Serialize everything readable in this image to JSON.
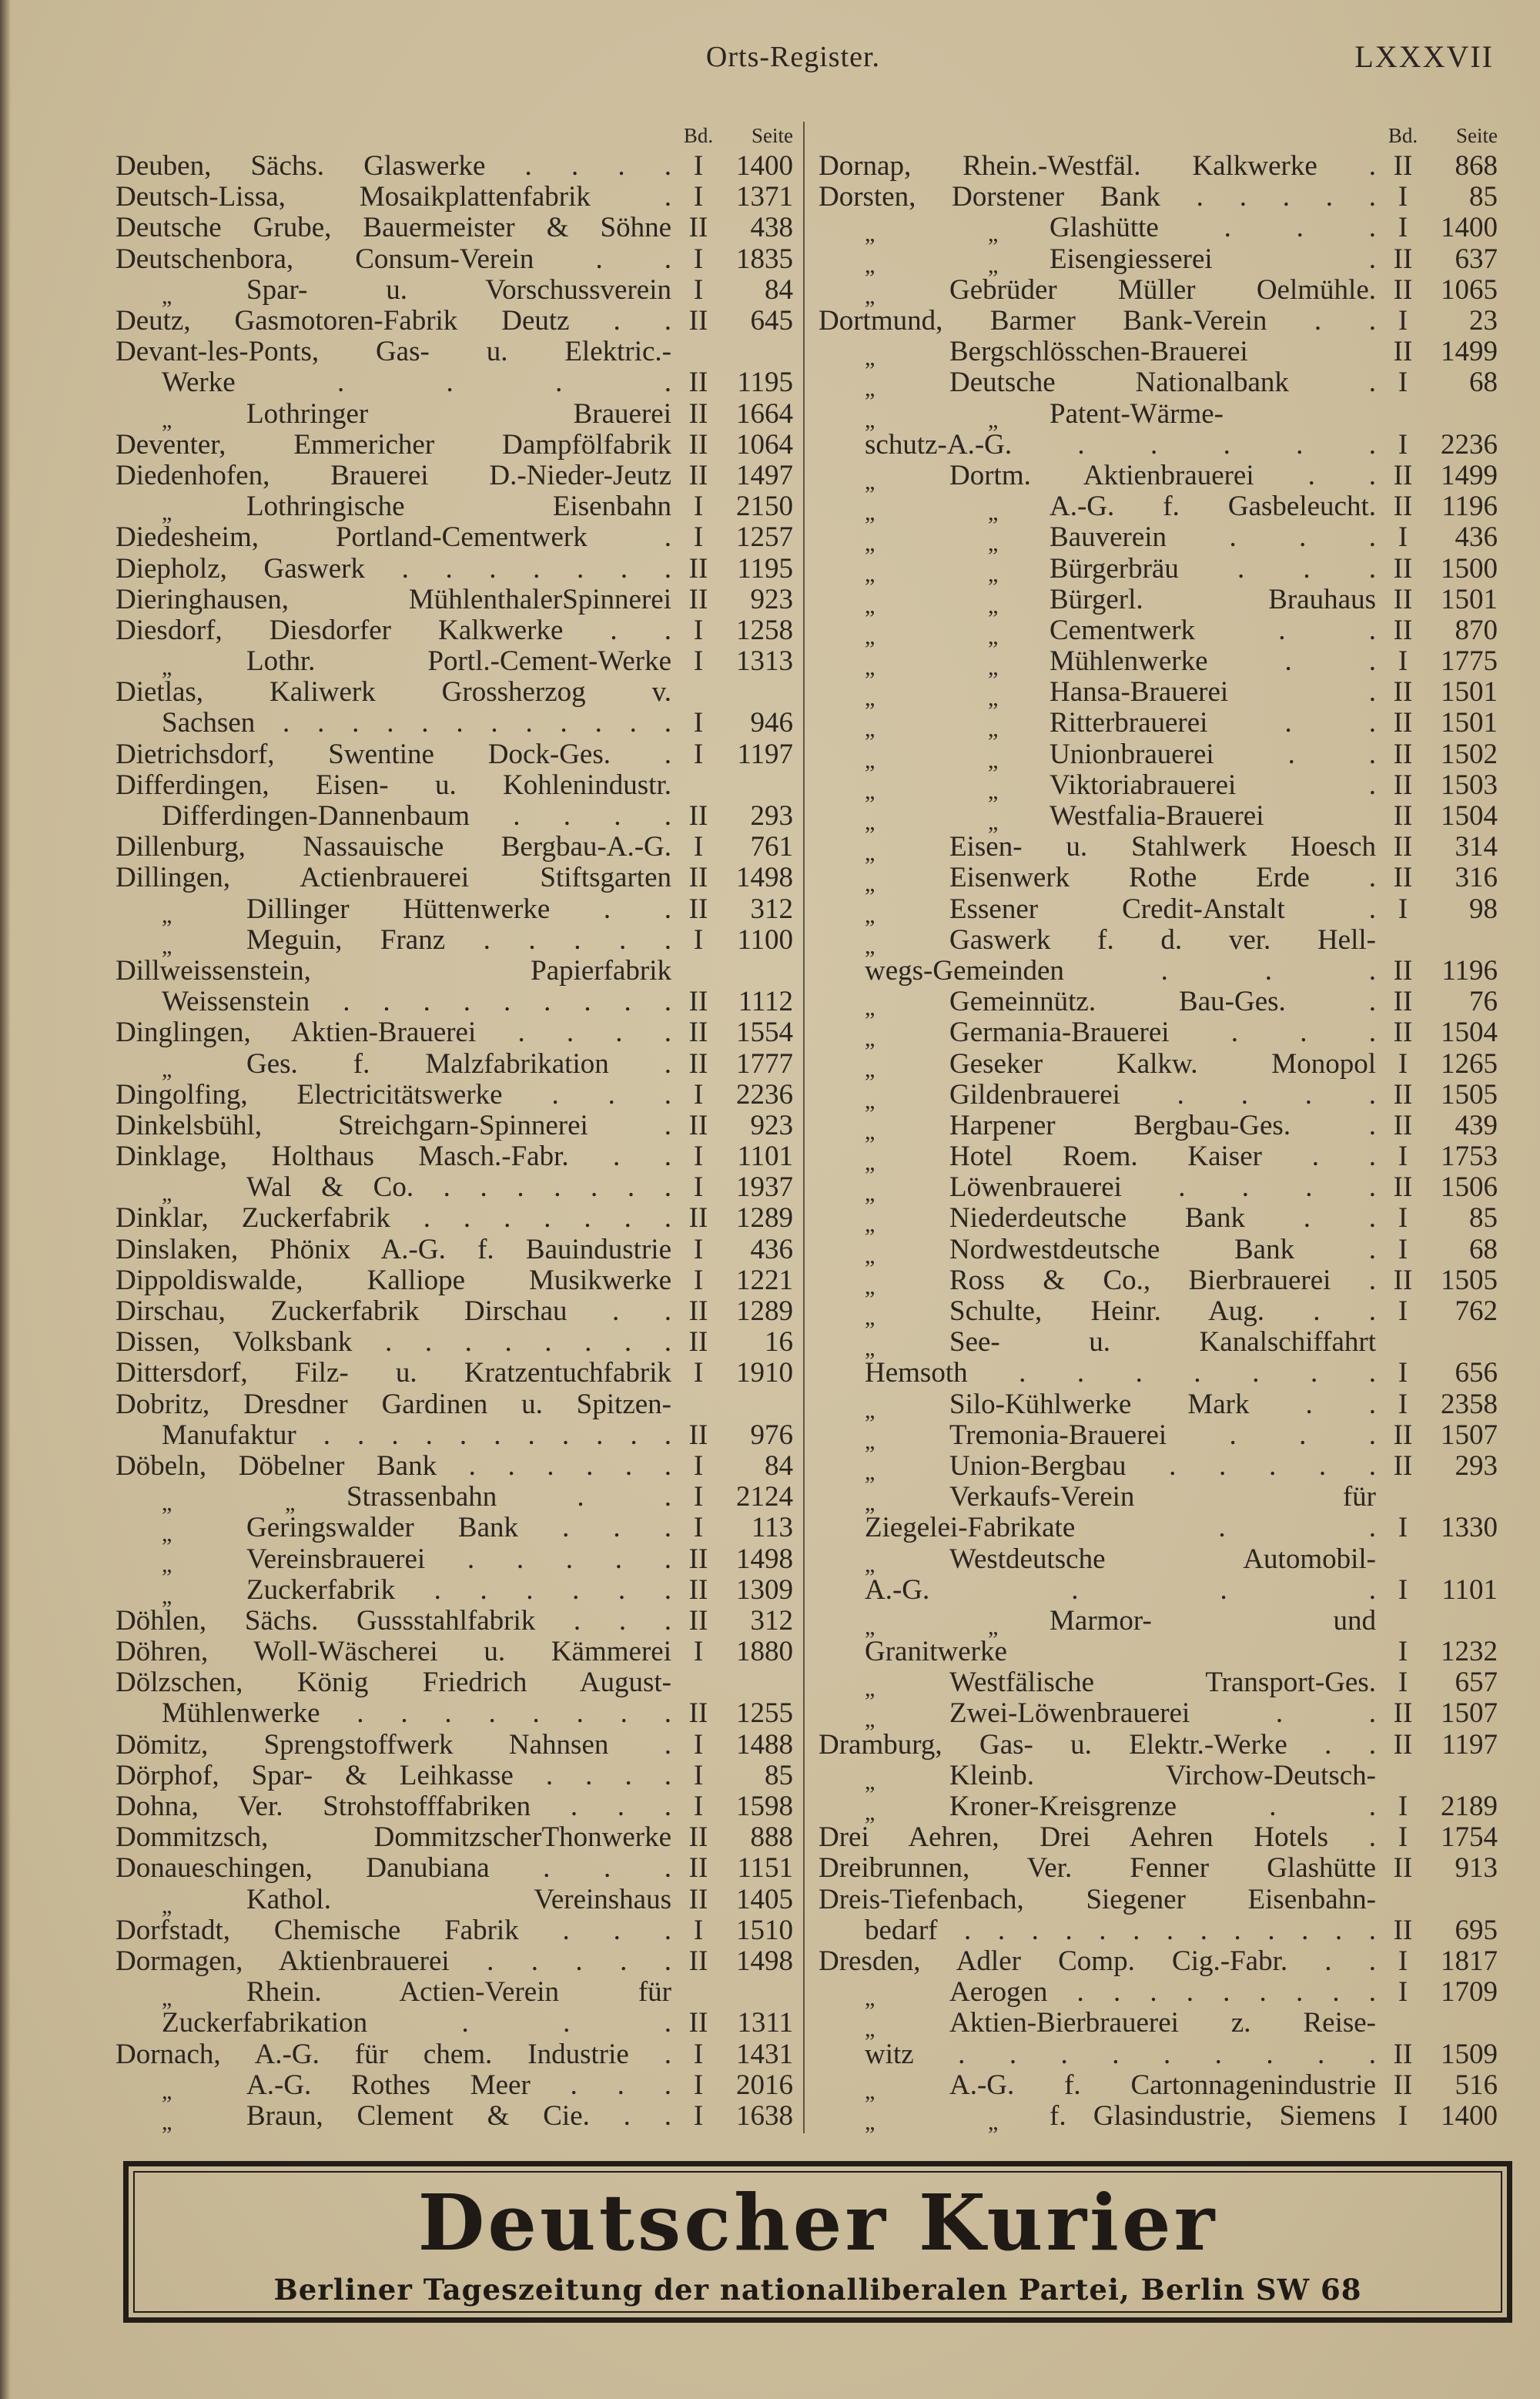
{
  "header": {
    "title": "Orts-Register.",
    "page_number": "LXXXVII"
  },
  "column_headers": {
    "bd": "Bd.",
    "seite": "Seite"
  },
  "left": {
    "rows": [
      {
        "t": "Deuben, Sächs. Glaswerke . . . .",
        "bd": "I",
        "s": "1400"
      },
      {
        "t": "Deutsch-Lissa, Mosaikplattenfabrik .",
        "bd": "I",
        "s": "1371"
      },
      {
        "t": "Deutsche Grube, Bauermeister & Söhne",
        "bd": "II",
        "s": "438"
      },
      {
        "t": "Deutschenbora, Consum-Verein . .",
        "bd": "I",
        "s": "1835"
      },
      {
        "d": "„",
        "t": "Spar- u. Vorschussverein",
        "bd": "I",
        "s": "84"
      },
      {
        "t": "Deutz, Gasmotoren-Fabrik Deutz . .",
        "bd": "II",
        "s": "645"
      },
      {
        "t": "Devant-les-Ponts, Gas- u. Elektric.-"
      },
      {
        "c": true,
        "t": "Werke . . . .",
        "bd": "II",
        "s": "1195"
      },
      {
        "d": "„",
        "t": "Lothringer Brauerei",
        "bd": "II",
        "s": "1664"
      },
      {
        "t": "Deventer, Emmericher Dampfölfabrik",
        "bd": "II",
        "s": "1064"
      },
      {
        "t": "Diedenhofen, Brauerei D.-Nieder-Jeutz",
        "bd": "II",
        "s": "1497"
      },
      {
        "d": "„",
        "t": "Lothringische Eisenbahn",
        "bd": "I",
        "s": "2150"
      },
      {
        "t": "Diedesheim, Portland-Cementwerk .",
        "bd": "I",
        "s": "1257"
      },
      {
        "t": "Diepholz, Gaswerk . . . . . . .",
        "bd": "II",
        "s": "1195"
      },
      {
        "t": "Dieringhausen, MühlenthalerSpinnerei",
        "bd": "II",
        "s": "923"
      },
      {
        "t": "Diesdorf, Diesdorfer Kalkwerke . .",
        "bd": "I",
        "s": "1258"
      },
      {
        "d": "„",
        "t": "Lothr. Portl.-Cement-Werke",
        "bd": "I",
        "s": "1313"
      },
      {
        "t": "Dietlas, Kaliwerk Grossherzog v."
      },
      {
        "c": true,
        "t": "Sachsen . . . . . . . . . . . .",
        "bd": "I",
        "s": "946"
      },
      {
        "t": "Dietrichsdorf, Swentine Dock-Ges. .",
        "bd": "I",
        "s": "1197"
      },
      {
        "t": "Differdingen, Eisen- u. Kohlenindustr."
      },
      {
        "c": true,
        "t": "Differdingen-Dannenbaum . . . .",
        "bd": "II",
        "s": "293"
      },
      {
        "t": "Dillenburg, Nassauische Bergbau-A.-G.",
        "bd": "I",
        "s": "761"
      },
      {
        "t": "Dillingen, Actienbrauerei Stiftsgarten",
        "bd": "II",
        "s": "1498"
      },
      {
        "d": "„",
        "t": "Dillinger Hüttenwerke . .",
        "bd": "II",
        "s": "312"
      },
      {
        "d": "„",
        "t": "Meguin, Franz . . . . .",
        "bd": "I",
        "s": "1100"
      },
      {
        "t": "Dillweissenstein, Papierfabrik"
      },
      {
        "c": true,
        "t": "Weissenstein . . . . . . . . .",
        "bd": "II",
        "s": "1112"
      },
      {
        "t": "Dinglingen, Aktien-Brauerei . . . .",
        "bd": "II",
        "s": "1554"
      },
      {
        "d": "„",
        "t": "Ges. f. Malzfabrikation .",
        "bd": "II",
        "s": "1777"
      },
      {
        "t": "Dingolfing, Electricitätswerke . . .",
        "bd": "I",
        "s": "2236"
      },
      {
        "t": "Dinkelsbühl, Streichgarn-Spinnerei .",
        "bd": "II",
        "s": "923"
      },
      {
        "t": "Dinklage, Holthaus Masch.-Fabr. . .",
        "bd": "I",
        "s": "1101"
      },
      {
        "d": "„",
        "t": "Wal & Co. . . . . . . .",
        "bd": "I",
        "s": "1937"
      },
      {
        "t": "Dinklar, Zuckerfabrik . . . . . . .",
        "bd": "II",
        "s": "1289"
      },
      {
        "t": "Dinslaken, Phönix A.-G. f. Bauindustrie",
        "bd": "I",
        "s": "436"
      },
      {
        "t": "Dippoldiswalde, Kalliope Musikwerke",
        "bd": "I",
        "s": "1221"
      },
      {
        "t": "Dirschau, Zuckerfabrik Dirschau . .",
        "bd": "II",
        "s": "1289"
      },
      {
        "t": "Dissen, Volksbank . . . . . . . .",
        "bd": "II",
        "s": "16"
      },
      {
        "t": "Dittersdorf, Filz- u. Kratzentuchfabrik",
        "bd": "I",
        "s": "1910"
      },
      {
        "t": "Dobritz, Dresdner Gardinen u. Spitzen-"
      },
      {
        "c": true,
        "t": "Manufaktur . . . . . . . . . . .",
        "bd": "II",
        "s": "976"
      },
      {
        "t": "Döbeln, Döbelner Bank . . . . . .",
        "bd": "I",
        "s": "84"
      },
      {
        "d": "„",
        "d2": "„",
        "t": "Strassenbahn . .",
        "bd": "I",
        "s": "2124"
      },
      {
        "d": "„",
        "t": "Geringswalder Bank . . .",
        "bd": "I",
        "s": "113"
      },
      {
        "d": "„",
        "t": "Vereinsbrauerei . . . . .",
        "bd": "II",
        "s": "1498"
      },
      {
        "d": "„",
        "t": "Zuckerfabrik . . . . . .",
        "bd": "II",
        "s": "1309"
      },
      {
        "t": "Döhlen, Sächs. Gussstahlfabrik . . .",
        "bd": "II",
        "s": "312"
      },
      {
        "t": "Döhren, Woll-Wäscherei u. Kämmerei",
        "bd": "I",
        "s": "1880"
      },
      {
        "t": "Dölzschen, König Friedrich August-"
      },
      {
        "c": true,
        "t": "Mühlenwerke . . . . . . . .",
        "bd": "II",
        "s": "1255"
      },
      {
        "t": "Dömitz, Sprengstoffwerk Nahnsen .",
        "bd": "I",
        "s": "1488"
      },
      {
        "t": "Dörphof, Spar- & Leihkasse . . . .",
        "bd": "I",
        "s": "85"
      },
      {
        "t": "Dohna, Ver. Strohstofffabriken . . .",
        "bd": "I",
        "s": "1598"
      },
      {
        "t": "Dommitzsch, DommitzscherThonwerke",
        "bd": "II",
        "s": "888"
      },
      {
        "t": "Donaueschingen, Danubiana . . .",
        "bd": "II",
        "s": "1151"
      },
      {
        "d": "„",
        "t": "Kathol. Vereinshaus",
        "bd": "II",
        "s": "1405"
      },
      {
        "t": "Dorfstadt, Chemische Fabrik . . .",
        "bd": "I",
        "s": "1510"
      },
      {
        "t": "Dormagen, Aktienbrauerei . . . . .",
        "bd": "II",
        "s": "1498"
      },
      {
        "d": "„",
        "t": "Rhein. Actien-Verein für"
      },
      {
        "c": true,
        "t": "Zuckerfabrikation . . .",
        "bd": "II",
        "s": "1311"
      },
      {
        "t": "Dornach, A.-G. für chem. Industrie .",
        "bd": "I",
        "s": "1431"
      },
      {
        "d": "„",
        "t": "A.-G. Rothes Meer . . .",
        "bd": "I",
        "s": "2016"
      },
      {
        "d": "„",
        "t": "Braun, Clement & Cie. . .",
        "bd": "I",
        "s": "1638"
      }
    ]
  },
  "right": {
    "rows": [
      {
        "t": "Dornap, Rhein.-Westfäl. Kalkwerke .",
        "bd": "II",
        "s": "868"
      },
      {
        "t": "Dorsten, Dorstener Bank . . . . .",
        "bd": "I",
        "s": "85"
      },
      {
        "d": "„",
        "d2": "„",
        "t": "Glashütte . . .",
        "bd": "I",
        "s": "1400"
      },
      {
        "d": "„",
        "d2": "„",
        "t": "Eisengiesserei .",
        "bd": "II",
        "s": "637"
      },
      {
        "d": "„",
        "t": "Gebrüder Müller Oelmühle.",
        "bd": "II",
        "s": "1065"
      },
      {
        "t": "Dortmund, Barmer Bank-Verein . .",
        "bd": "I",
        "s": "23"
      },
      {
        "d": "„",
        "t": "Bergschlösschen-Brauerei",
        "bd": "II",
        "s": "1499"
      },
      {
        "d": "„",
        "t": "Deutsche Nationalbank .",
        "bd": "I",
        "s": "68"
      },
      {
        "d": "„",
        "d2": "„",
        "t": "Patent-Wärme-"
      },
      {
        "c": true,
        "t": "schutz-A.-G. . . . . .",
        "bd": "I",
        "s": "2236"
      },
      {
        "d": "„",
        "t": "Dortm. Aktienbrauerei . .",
        "bd": "II",
        "s": "1499"
      },
      {
        "d": "„",
        "d2": "„",
        "t": "A.-G. f. Gasbeleucht.",
        "bd": "II",
        "s": "1196"
      },
      {
        "d": "„",
        "d2": "„",
        "t": "Bauverein . . .",
        "bd": "I",
        "s": "436"
      },
      {
        "d": "„",
        "d2": "„",
        "t": "Bürgerbräu . . .",
        "bd": "II",
        "s": "1500"
      },
      {
        "d": "„",
        "d2": "„",
        "t": "Bürgerl. Brauhaus",
        "bd": "II",
        "s": "1501"
      },
      {
        "d": "„",
        "d2": "„",
        "t": "Cementwerk . .",
        "bd": "II",
        "s": "870"
      },
      {
        "d": "„",
        "d2": "„",
        "t": "Mühlenwerke . .",
        "bd": "I",
        "s": "1775"
      },
      {
        "d": "„",
        "d2": "„",
        "t": "Hansa-Brauerei .",
        "bd": "II",
        "s": "1501"
      },
      {
        "d": "„",
        "d2": "„",
        "t": "Ritterbrauerei . .",
        "bd": "II",
        "s": "1501"
      },
      {
        "d": "„",
        "d2": "„",
        "t": "Unionbrauerei . .",
        "bd": "II",
        "s": "1502"
      },
      {
        "d": "„",
        "d2": "„",
        "t": "Viktoriabrauerei .",
        "bd": "II",
        "s": "1503"
      },
      {
        "d": "„",
        "d2": "„",
        "t": "Westfalia-Brauerei",
        "bd": "II",
        "s": "1504"
      },
      {
        "d": "„",
        "t": "Eisen- u. Stahlwerk Hoesch",
        "bd": "II",
        "s": "314"
      },
      {
        "d": "„",
        "t": "Eisenwerk Rothe Erde .",
        "bd": "II",
        "s": "316"
      },
      {
        "d": "„",
        "t": "Essener Credit-Anstalt .",
        "bd": "I",
        "s": "98"
      },
      {
        "d": "„",
        "t": "Gaswerk f. d. ver. Hell-"
      },
      {
        "c": true,
        "t": "wegs-Gemeinden . . .",
        "bd": "II",
        "s": "1196"
      },
      {
        "d": "„",
        "t": "Gemeinnütz. Bau-Ges. .",
        "bd": "II",
        "s": "76"
      },
      {
        "d": "„",
        "t": "Germania-Brauerei . . .",
        "bd": "II",
        "s": "1504"
      },
      {
        "d": "„",
        "t": "Geseker Kalkw. Monopol",
        "bd": "I",
        "s": "1265"
      },
      {
        "d": "„",
        "t": "Gildenbrauerei . . . .",
        "bd": "II",
        "s": "1505"
      },
      {
        "d": "„",
        "t": "Harpener Bergbau-Ges. .",
        "bd": "II",
        "s": "439"
      },
      {
        "d": "„",
        "t": "Hotel Roem. Kaiser . .",
        "bd": "I",
        "s": "1753"
      },
      {
        "d": "„",
        "t": "Löwenbrauerei . . . .",
        "bd": "II",
        "s": "1506"
      },
      {
        "d": "„",
        "t": "Niederdeutsche Bank . .",
        "bd": "I",
        "s": "85"
      },
      {
        "d": "„",
        "t": "Nordwestdeutsche Bank .",
        "bd": "I",
        "s": "68"
      },
      {
        "d": "„",
        "t": "Ross & Co., Bierbrauerei .",
        "bd": "II",
        "s": "1505"
      },
      {
        "d": "„",
        "t": "Schulte, Heinr. Aug. . .",
        "bd": "I",
        "s": "762"
      },
      {
        "d": "„",
        "t": "See- u. Kanalschiffahrt"
      },
      {
        "c": true,
        "t": "Hemsoth . . . . . . .",
        "bd": "I",
        "s": "656"
      },
      {
        "d": "„",
        "t": "Silo-Kühlwerke Mark . .",
        "bd": "I",
        "s": "2358"
      },
      {
        "d": "„",
        "t": "Tremonia-Brauerei . . .",
        "bd": "II",
        "s": "1507"
      },
      {
        "d": "„",
        "t": "Union-Bergbau . . . . .",
        "bd": "II",
        "s": "293"
      },
      {
        "d": "„",
        "t": "Verkaufs-Verein für"
      },
      {
        "c": true,
        "t": "Ziegelei-Fabrikate . .",
        "bd": "I",
        "s": "1330"
      },
      {
        "d": "„",
        "t": "Westdeutsche Automobil-"
      },
      {
        "c": true,
        "t": "A.-G. . . .",
        "bd": "I",
        "s": "1101"
      },
      {
        "d": "„",
        "d2": "„",
        "t": "Marmor- und"
      },
      {
        "c": true,
        "t": "Granitwerke",
        "bd": "I",
        "s": "1232"
      },
      {
        "d": "„",
        "t": "Westfälische Transport-Ges.",
        "bd": "I",
        "s": "657"
      },
      {
        "d": "„",
        "t": "Zwei-Löwenbrauerei . .",
        "bd": "II",
        "s": "1507"
      },
      {
        "t": "Dramburg, Gas- u. Elektr.-Werke . .",
        "bd": "II",
        "s": "1197"
      },
      {
        "d": "„",
        "t": "Kleinb. Virchow-Deutsch-"
      },
      {
        "d": "„",
        "t": "Kroner-Kreisgrenze . .",
        "bd": "I",
        "s": "2189"
      },
      {
        "t": "Drei Aehren, Drei Aehren Hotels .",
        "bd": "I",
        "s": "1754"
      },
      {
        "t": "Dreibrunnen, Ver. Fenner Glashütte",
        "bd": "II",
        "s": "913"
      },
      {
        "t": "Dreis-Tiefenbach, Siegener Eisenbahn-"
      },
      {
        "c": true,
        "t": "bedarf . . . . . . . . . . . . .",
        "bd": "II",
        "s": "695"
      },
      {
        "t": "Dresden, Adler Comp. Cig.-Fabr. . .",
        "bd": "I",
        "s": "1817"
      },
      {
        "d": "„",
        "t": "Aerogen . . . . . . . . .",
        "bd": "I",
        "s": "1709"
      },
      {
        "d": "„",
        "t": "Aktien-Bierbrauerei z. Reise-"
      },
      {
        "c": true,
        "t": "witz . . . . . . . . .",
        "bd": "II",
        "s": "1509"
      },
      {
        "d": "„",
        "t": "A.-G. f. Cartonnagenindustrie",
        "bd": "II",
        "s": "516"
      },
      {
        "d": "„",
        "d2": "„",
        "t": "f. Glasindustrie, Siemens",
        "bd": "I",
        "s": "1400"
      }
    ]
  },
  "advertisement": {
    "title": "Deutscher Kurier",
    "subtitle": "Berliner Tageszeitung der nationalliberalen Partei, Berlin SW 68"
  }
}
